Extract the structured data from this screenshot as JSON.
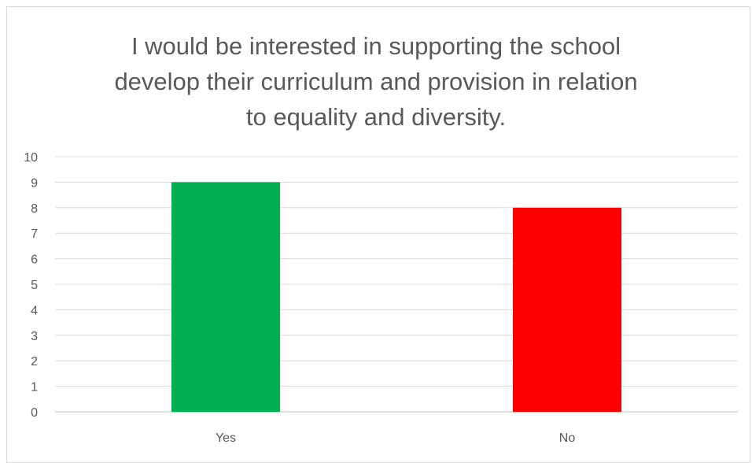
{
  "chart_data": {
    "type": "bar",
    "title_lines": [
      "I would be interested in supporting the school",
      "develop their curriculum and provision in relation",
      "to equality and diversity."
    ],
    "categories": [
      "Yes",
      "No"
    ],
    "values": [
      9,
      8
    ],
    "bar_colors": [
      "#00b050",
      "#ff0000"
    ],
    "xlabel": "",
    "ylabel": "",
    "ylim": [
      0,
      10
    ],
    "yticks": [
      "0",
      "1",
      "2",
      "3",
      "4",
      "5",
      "6",
      "7",
      "8",
      "9",
      "10"
    ],
    "grid": true,
    "legend": "none"
  }
}
